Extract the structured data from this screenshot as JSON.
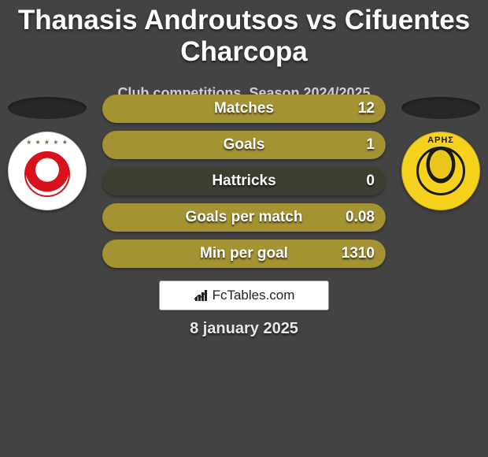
{
  "page": {
    "title": "Thanasis Androutsos vs Cifuentes Charcopa",
    "subtitle": "Club competitions, Season 2024/2025",
    "date": "8 january 2025",
    "background_color": "#434343",
    "title_color": "#ffffff",
    "title_fontsize": 35,
    "subtitle_color": "#cfcfcf",
    "subtitle_fontsize": 18,
    "date_fontsize": 20
  },
  "clubs": {
    "left": {
      "name": "Olympiacos",
      "badge_bg": "#ffffff",
      "accent": "#d8121a"
    },
    "right": {
      "name": "Aris",
      "badge_bg": "#f5d21e",
      "accent": "#1a1a1a"
    }
  },
  "stats": {
    "pill_bg": "#3e3d32",
    "pill_height": 36,
    "pill_width": 360,
    "pill_radius": 18,
    "font_color": "#ffffff",
    "fontsize": 19,
    "left_color": "#d60c0c",
    "right_color": "#a39333",
    "rows": [
      {
        "label": "Matches",
        "left": "",
        "right": "12",
        "left_pct": 0,
        "right_pct": 100
      },
      {
        "label": "Goals",
        "left": "",
        "right": "1",
        "left_pct": 0,
        "right_pct": 100
      },
      {
        "label": "Hattricks",
        "left": "",
        "right": "0",
        "left_pct": 0,
        "right_pct": 0
      },
      {
        "label": "Goals per match",
        "left": "",
        "right": "0.08",
        "left_pct": 0,
        "right_pct": 100
      },
      {
        "label": "Min per goal",
        "left": "",
        "right": "1310",
        "left_pct": 0,
        "right_pct": 100
      }
    ]
  },
  "brand": {
    "text": "FcTables.com",
    "box_bg": "#ffffff",
    "box_border": "#9a9a9a",
    "text_color": "#222222",
    "icon_color": "#222222"
  }
}
